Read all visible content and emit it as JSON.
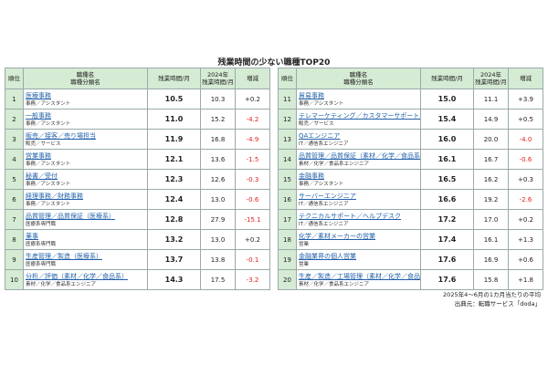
{
  "title": "残業時間の少ない職種TOP20",
  "tables": [
    {
      "header": [
        [
          "順位"
        ],
        [
          "職種名",
          "職種分類名"
        ],
        [
          "残業時間/月"
        ],
        [
          "2024年",
          "残業時間/月"
        ],
        [
          "増減"
        ]
      ],
      "rows": [
        {
          "rank": "1",
          "name": "医療事務",
          "category": "事務／アシスタント",
          "hours": "10.5",
          "hours_2024": "10.3",
          "change": "+0.2"
        },
        {
          "rank": "2",
          "name": "一般事務",
          "category": "事務／アシスタント",
          "hours": "11.0",
          "hours_2024": "15.2",
          "change": "-4.2"
        },
        {
          "rank": "3",
          "name": "販売／接客／売り場担当",
          "category": "販売／サービス",
          "hours": "11.9",
          "hours_2024": "16.8",
          "change": "-4.9"
        },
        {
          "rank": "4",
          "name": "営業事務",
          "category": "事務／アシスタント",
          "hours": "12.1",
          "hours_2024": "13.6",
          "change": "-1.5"
        },
        {
          "rank": "5",
          "name": "秘書／受付",
          "category": "事務／アシスタント",
          "hours": "12.3",
          "hours_2024": "12.6",
          "change": "-0.3"
        },
        {
          "rank": "6",
          "name": "経理事務／財務事務",
          "category": "事務／アシスタント",
          "hours": "12.4",
          "hours_2024": "13.0",
          "change": "-0.6"
        },
        {
          "rank": "7",
          "name": "品質管理／品質保証（医療系）",
          "category": "医療系専門職",
          "hours": "12.8",
          "hours_2024": "27.9",
          "change": "-15.1"
        },
        {
          "rank": "8",
          "name": "薬事",
          "category": "医療系専門職",
          "hours": "13.2",
          "hours_2024": "13.0",
          "change": "+0.2"
        },
        {
          "rank": "9",
          "name": "生産管理／製造（医療系）",
          "category": "医療系専門職",
          "hours": "13.7",
          "hours_2024": "13.8",
          "change": "-0.1"
        },
        {
          "rank": "10",
          "name": "分析／評価（素材／化学／食品系）",
          "category": "素材／化学／食品系エンジニア",
          "hours": "14.3",
          "hours_2024": "17.5",
          "change": "-3.2"
        }
      ]
    },
    {
      "header": [
        [
          "順位"
        ],
        [
          "職種名",
          "職種分類名"
        ],
        [
          "残業時間/月"
        ],
        [
          "2024年",
          "残業時間/月"
        ],
        [
          "増減"
        ]
      ],
      "rows": [
        {
          "rank": "11",
          "name": "貿易事務",
          "category": "事務／アシスタント",
          "hours": "15.0",
          "hours_2024": "11.1",
          "change": "+3.9"
        },
        {
          "rank": "12",
          "name": "テレマーケティング／カスタマーサポート／コールセンター",
          "category": "販売／サービス",
          "hours": "15.4",
          "hours_2024": "14.9",
          "change": "+0.5"
        },
        {
          "rank": "13",
          "name": "QAエンジニア",
          "category": "IT／通信系エンジニア",
          "hours": "16.0",
          "hours_2024": "20.0",
          "change": "-4.0"
        },
        {
          "rank": "14",
          "name": "品質管理／品質保証（素材／化学／食品系）",
          "category": "素材／化学／食品系エンジニア",
          "hours": "16.1",
          "hours_2024": "16.7",
          "change": "-0.6"
        },
        {
          "rank": "15",
          "name": "金融事務",
          "category": "事務／アシスタント",
          "hours": "16.5",
          "hours_2024": "16.2",
          "change": "+0.3"
        },
        {
          "rank": "16",
          "name": "サーバーエンジニア",
          "category": "IT／通信系エンジニア",
          "hours": "16.6",
          "hours_2024": "19.2",
          "change": "-2.6"
        },
        {
          "rank": "17",
          "name": "テクニカルサポート／ヘルプデスク",
          "category": "IT／通信系エンジニア",
          "hours": "17.2",
          "hours_2024": "17.0",
          "change": "+0.2"
        },
        {
          "rank": "18",
          "name": "化学／素材メーカーの営業",
          "category": "営業",
          "hours": "17.4",
          "hours_2024": "16.1",
          "change": "+1.3"
        },
        {
          "rank": "19",
          "name": "金融業界の個人営業",
          "category": "営業",
          "hours": "17.6",
          "hours_2024": "16.9",
          "change": "+0.6"
        },
        {
          "rank": "20",
          "name": "生産／製造／工場管理（素材／化学／食品系）",
          "category": "素材／化学／食品系エンジニア",
          "hours": "17.6",
          "hours_2024": "15.8",
          "change": "+1.8"
        }
      ]
    }
  ],
  "notes": [
    "2025年4～6月の1カ月当たりの平均",
    "出典元：転職サービス「doda」"
  ]
}
